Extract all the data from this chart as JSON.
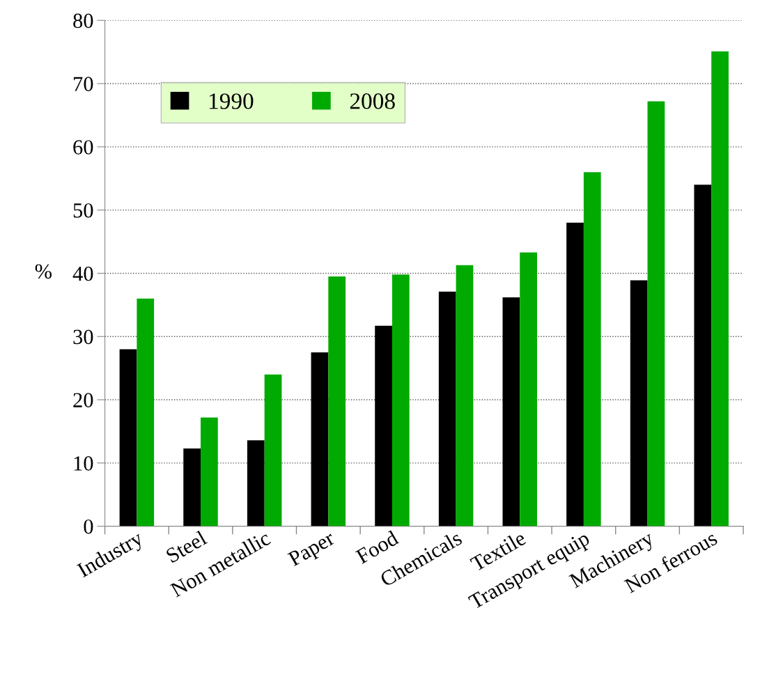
{
  "chart_data": {
    "type": "bar",
    "ylabel": "%",
    "categories": [
      "Industry",
      "Steel",
      "Non metallic",
      "Paper",
      "Food",
      "Chemicals",
      "Textile",
      "Transport equip",
      "Machinery",
      "Non ferrous"
    ],
    "series": [
      {
        "name": "1990",
        "color": "#000000",
        "values": [
          28,
          12.3,
          13.6,
          27.5,
          31.7,
          37.1,
          36.2,
          48,
          38.9,
          54
        ]
      },
      {
        "name": "2008",
        "color": "#00aa00",
        "values": [
          36,
          17.2,
          24,
          39.5,
          39.8,
          41.3,
          43.3,
          56,
          67.2,
          75.1
        ]
      }
    ],
    "ylim": [
      0,
      80
    ],
    "yticks": [
      0,
      10,
      20,
      30,
      40,
      50,
      60,
      70,
      80
    ],
    "grid": "y",
    "legend": "top left"
  }
}
